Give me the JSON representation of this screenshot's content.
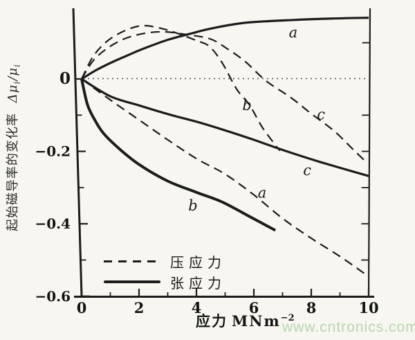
{
  "figure": {
    "background": "#f7f6f1",
    "ink": "#1c1c1c"
  },
  "watermark": {
    "text": "www.cntronics.com",
    "color": "#b7d6ad"
  },
  "chart_data": {
    "type": "line",
    "x_axis": {
      "label_cn": "应力",
      "unit": "MNm",
      "unit_exponent": "−2",
      "range": [
        0,
        10
      ],
      "major_ticks": [
        0,
        2,
        4,
        6,
        8,
        10
      ],
      "minor_ticks": [
        1,
        3,
        5,
        7,
        9
      ],
      "tick_labels": [
        "0",
        "2",
        "4",
        "6",
        "8",
        "10"
      ]
    },
    "y_axis": {
      "label_cn": "起始磁导率的变化率",
      "label_formula": {
        "delta": "Δμ",
        "sub1": "i",
        "slash": "/μ",
        "sub2": "i"
      },
      "range": [
        -0.6,
        0.2
      ],
      "major_ticks": [
        0,
        -0.2,
        -0.4,
        -0.6
      ],
      "tick_labels": [
        "0",
        "−0.2",
        "−0.4",
        "−0.6"
      ],
      "minor_ticks": [
        -0.1,
        -0.3,
        -0.5
      ],
      "right_border_ticks": [
        0.1,
        -0.1,
        -0.2,
        -0.3,
        -0.4,
        -0.5
      ]
    },
    "zero_line": true,
    "legend": {
      "items": [
        {
          "line_style": "dashed",
          "label": "压应力"
        },
        {
          "line_style": "solid",
          "label": "张应力"
        }
      ]
    },
    "series": [
      {
        "id": "tension-a",
        "label": "a",
        "stress": "张应力",
        "style": "solid",
        "points": [
          [
            0,
            0
          ],
          [
            0.5,
            0.024
          ],
          [
            1,
            0.044
          ],
          [
            1.6,
            0.065
          ],
          [
            2.1,
            0.082
          ],
          [
            3,
            0.108
          ],
          [
            3.8,
            0.125
          ],
          [
            4.5,
            0.139
          ],
          [
            5.7,
            0.155
          ],
          [
            7.4,
            0.163
          ],
          [
            8.8,
            0.167
          ],
          [
            10,
            0.169
          ]
        ]
      },
      {
        "id": "tension-b",
        "label": "b",
        "stress": "张应力",
        "style": "solid",
        "points": [
          [
            0,
            0
          ],
          [
            0.2,
            -0.07
          ],
          [
            0.45,
            -0.112
          ],
          [
            0.76,
            -0.15
          ],
          [
            1.3,
            -0.192
          ],
          [
            2,
            -0.236
          ],
          [
            3,
            -0.282
          ],
          [
            4,
            -0.313
          ],
          [
            4.9,
            -0.34
          ],
          [
            5.9,
            -0.382
          ],
          [
            6.75,
            -0.418
          ]
        ]
      },
      {
        "id": "tension-c",
        "label": "c",
        "stress": "张应力",
        "style": "solid",
        "points": [
          [
            0,
            0
          ],
          [
            1,
            -0.048
          ],
          [
            2,
            -0.073
          ],
          [
            3,
            -0.097
          ],
          [
            4,
            -0.118
          ],
          [
            5,
            -0.142
          ],
          [
            6,
            -0.168
          ],
          [
            7,
            -0.196
          ],
          [
            8.3,
            -0.229
          ],
          [
            10,
            -0.268
          ]
        ]
      },
      {
        "id": "compression-b",
        "label": "b",
        "stress": "压应力",
        "style": "dashed",
        "points": [
          [
            0,
            0
          ],
          [
            0.4,
            0.062
          ],
          [
            0.9,
            0.105
          ],
          [
            1.5,
            0.133
          ],
          [
            2.1,
            0.147
          ],
          [
            2.7,
            0.141
          ],
          [
            3.3,
            0.127
          ],
          [
            4,
            0.106
          ],
          [
            4.45,
            0.09
          ],
          [
            4.9,
            0.044
          ],
          [
            5.4,
            -0.028
          ],
          [
            5.85,
            -0.072
          ],
          [
            6.3,
            -0.134
          ],
          [
            6.9,
            -0.198
          ]
        ]
      },
      {
        "id": "compression-c",
        "label": "c",
        "stress": "压应力",
        "style": "dashed",
        "points": [
          [
            0,
            0
          ],
          [
            0.4,
            0.05
          ],
          [
            0.9,
            0.085
          ],
          [
            1.5,
            0.111
          ],
          [
            2.2,
            0.126
          ],
          [
            2.9,
            0.13
          ],
          [
            3.7,
            0.122
          ],
          [
            4.5,
            0.11
          ],
          [
            5.1,
            0.082
          ],
          [
            5.7,
            0.048
          ],
          [
            6.42,
            -0.005
          ],
          [
            7.3,
            -0.052
          ],
          [
            8,
            -0.096
          ],
          [
            8.8,
            -0.144
          ],
          [
            9.5,
            -0.198
          ],
          [
            9.95,
            -0.232
          ]
        ]
      },
      {
        "id": "compression-a",
        "label": "a",
        "stress": "压应力",
        "style": "dashed",
        "points": [
          [
            0,
            0
          ],
          [
            1,
            -0.058
          ],
          [
            2,
            -0.113
          ],
          [
            3,
            -0.168
          ],
          [
            4,
            -0.22
          ],
          [
            5,
            -0.263
          ],
          [
            6,
            -0.32
          ],
          [
            7,
            -0.385
          ],
          [
            8,
            -0.44
          ],
          [
            9,
            -0.49
          ],
          [
            9.85,
            -0.537
          ]
        ]
      }
    ],
    "curve_labels": [
      {
        "text": "a",
        "series": "tension-a",
        "x": 7.37,
        "y": 0.128
      },
      {
        "text": "b",
        "series": "compression-b",
        "x": 5.76,
        "y": -0.073
      },
      {
        "text": "c",
        "series": "compression-c",
        "x": 8.34,
        "y": -0.098
      },
      {
        "text": "c",
        "series": "tension-c",
        "x": 7.86,
        "y": -0.252
      },
      {
        "text": "a",
        "series": "compression-a",
        "x": 6.29,
        "y": -0.315
      },
      {
        "text": "b",
        "series": "tension-b",
        "x": 3.88,
        "y": -0.35
      }
    ]
  }
}
